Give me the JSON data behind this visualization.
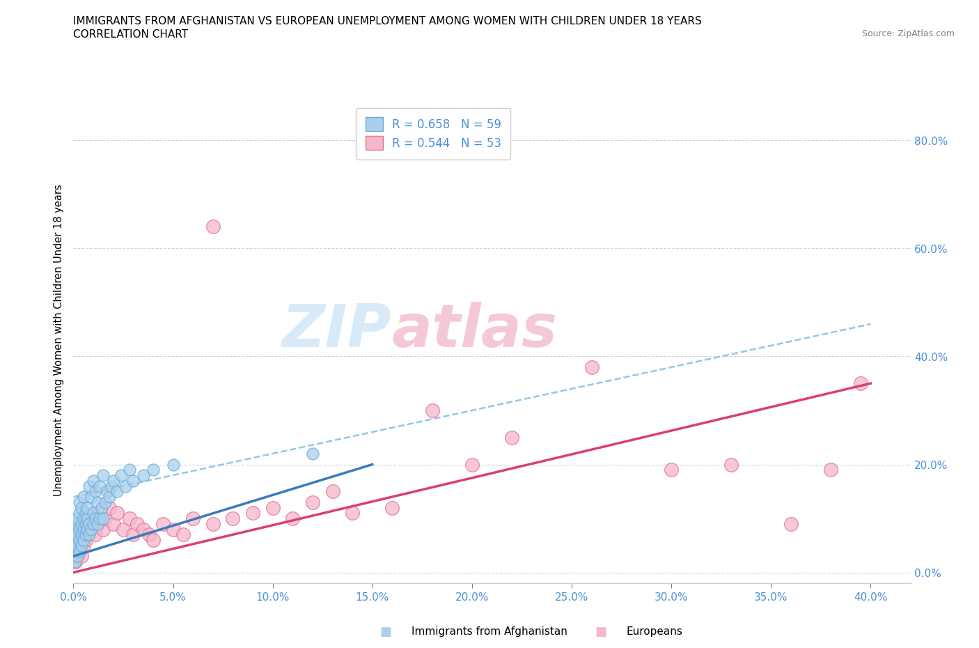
{
  "title_line1": "IMMIGRANTS FROM AFGHANISTAN VS EUROPEAN UNEMPLOYMENT AMONG WOMEN WITH CHILDREN UNDER 18 YEARS",
  "title_line2": "CORRELATION CHART",
  "source": "Source: ZipAtlas.com",
  "xlim": [
    0.0,
    0.42
  ],
  "ylim": [
    -0.02,
    0.88
  ],
  "legend_r1": "R = 0.658   N = 59",
  "legend_r2": "R = 0.544   N = 53",
  "color_afghan": "#aacfee",
  "color_euro": "#f5b8cb",
  "color_afghan_edge": "#6aaad4",
  "color_euro_edge": "#e87090",
  "color_trend_afghan": "#3a7abf",
  "color_trend_euro": "#d94070",
  "color_dashed": "#90c8e8",
  "watermark_color": "#d8eaf8",
  "watermark2_color": "#f5c8d8",
  "xticks": [
    0.0,
    0.05,
    0.1,
    0.15,
    0.2,
    0.25,
    0.3,
    0.35,
    0.4
  ],
  "yticks": [
    0.0,
    0.2,
    0.4,
    0.6,
    0.8
  ],
  "tick_color": "#4a90d9",
  "afghan_x": [
    0.001,
    0.001,
    0.001,
    0.001,
    0.002,
    0.002,
    0.002,
    0.002,
    0.002,
    0.003,
    0.003,
    0.003,
    0.003,
    0.003,
    0.004,
    0.004,
    0.004,
    0.004,
    0.005,
    0.005,
    0.005,
    0.005,
    0.006,
    0.006,
    0.006,
    0.007,
    0.007,
    0.007,
    0.008,
    0.008,
    0.008,
    0.009,
    0.009,
    0.01,
    0.01,
    0.01,
    0.011,
    0.011,
    0.012,
    0.012,
    0.013,
    0.013,
    0.014,
    0.015,
    0.015,
    0.016,
    0.017,
    0.018,
    0.019,
    0.02,
    0.022,
    0.024,
    0.026,
    0.028,
    0.03,
    0.035,
    0.04,
    0.05,
    0.12
  ],
  "afghan_y": [
    0.02,
    0.04,
    0.06,
    0.08,
    0.03,
    0.05,
    0.07,
    0.09,
    0.1,
    0.04,
    0.06,
    0.08,
    0.11,
    0.13,
    0.05,
    0.07,
    0.09,
    0.12,
    0.06,
    0.08,
    0.1,
    0.14,
    0.07,
    0.09,
    0.11,
    0.08,
    0.1,
    0.12,
    0.07,
    0.09,
    0.16,
    0.08,
    0.14,
    0.09,
    0.11,
    0.17,
    0.1,
    0.15,
    0.09,
    0.13,
    0.1,
    0.16,
    0.12,
    0.1,
    0.18,
    0.13,
    0.15,
    0.14,
    0.16,
    0.17,
    0.15,
    0.18,
    0.16,
    0.19,
    0.17,
    0.18,
    0.19,
    0.2,
    0.22
  ],
  "euro_x": [
    0.001,
    0.002,
    0.002,
    0.003,
    0.003,
    0.004,
    0.004,
    0.005,
    0.005,
    0.006,
    0.006,
    0.007,
    0.008,
    0.009,
    0.01,
    0.011,
    0.012,
    0.013,
    0.015,
    0.016,
    0.018,
    0.02,
    0.022,
    0.025,
    0.028,
    0.03,
    0.032,
    0.035,
    0.038,
    0.04,
    0.045,
    0.05,
    0.055,
    0.06,
    0.07,
    0.08,
    0.09,
    0.1,
    0.11,
    0.12,
    0.14,
    0.16,
    0.18,
    0.2,
    0.22,
    0.26,
    0.3,
    0.33,
    0.36,
    0.38,
    0.395,
    0.13,
    0.07
  ],
  "euro_y": [
    0.02,
    0.03,
    0.05,
    0.04,
    0.06,
    0.03,
    0.07,
    0.05,
    0.08,
    0.06,
    0.09,
    0.07,
    0.08,
    0.09,
    0.1,
    0.07,
    0.09,
    0.11,
    0.08,
    0.1,
    0.12,
    0.09,
    0.11,
    0.08,
    0.1,
    0.07,
    0.09,
    0.08,
    0.07,
    0.06,
    0.09,
    0.08,
    0.07,
    0.1,
    0.09,
    0.1,
    0.11,
    0.12,
    0.1,
    0.13,
    0.11,
    0.12,
    0.3,
    0.2,
    0.25,
    0.38,
    0.19,
    0.2,
    0.09,
    0.19,
    0.35,
    0.15,
    0.64
  ],
  "afghan_trend_x": [
    0.0,
    0.15
  ],
  "afghan_trend_y": [
    0.03,
    0.2
  ],
  "euro_trend_x": [
    0.0,
    0.4
  ],
  "euro_trend_y": [
    0.0,
    0.35
  ],
  "dashed_trend_x": [
    0.0,
    0.4
  ],
  "dashed_trend_y": [
    0.14,
    0.46
  ]
}
